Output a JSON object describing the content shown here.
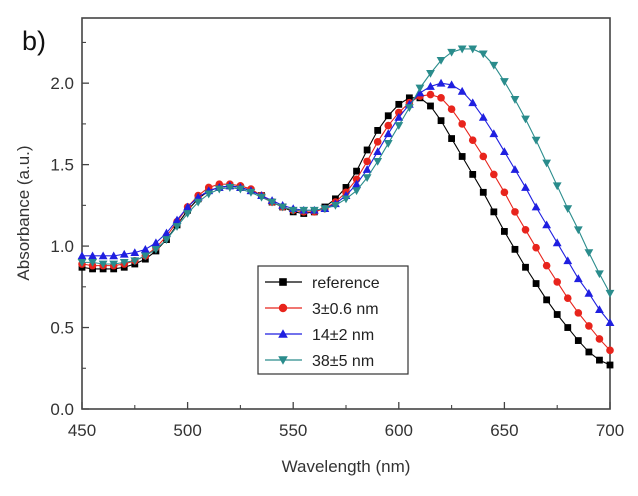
{
  "panel_label": "b)",
  "chart_data": {
    "type": "line",
    "title": "",
    "xlabel": "Wavelength (nm)",
    "ylabel": "Absorbance (a.u.)",
    "xlim": [
      450,
      700
    ],
    "ylim": [
      0.0,
      2.4
    ],
    "xticks": [
      450,
      500,
      550,
      600,
      650,
      700
    ],
    "yticks": [
      0.0,
      0.5,
      1.0,
      1.5,
      2.0
    ],
    "ytick_labels": [
      "0.0",
      "0.5",
      "1.0",
      "1.5",
      "2.0"
    ],
    "x_step": 5,
    "grid": false,
    "legend_position": "bottom-center",
    "series": [
      {
        "name": "reference",
        "marker": "square",
        "color": "#000000",
        "x": [
          450,
          455,
          460,
          465,
          470,
          475,
          480,
          485,
          490,
          495,
          500,
          505,
          510,
          515,
          520,
          525,
          530,
          535,
          540,
          545,
          550,
          555,
          560,
          565,
          570,
          575,
          580,
          585,
          590,
          595,
          600,
          605,
          610,
          615,
          620,
          625,
          630,
          635,
          640,
          645,
          650,
          655,
          660,
          665,
          670,
          675,
          680,
          685,
          690,
          695,
          700
        ],
        "values": [
          0.87,
          0.86,
          0.86,
          0.86,
          0.87,
          0.89,
          0.92,
          0.97,
          1.04,
          1.13,
          1.22,
          1.29,
          1.34,
          1.36,
          1.37,
          1.36,
          1.34,
          1.31,
          1.27,
          1.24,
          1.21,
          1.2,
          1.21,
          1.24,
          1.29,
          1.36,
          1.46,
          1.59,
          1.71,
          1.8,
          1.87,
          1.91,
          1.91,
          1.86,
          1.77,
          1.66,
          1.55,
          1.44,
          1.33,
          1.21,
          1.09,
          0.98,
          0.87,
          0.77,
          0.67,
          0.58,
          0.5,
          0.42,
          0.35,
          0.3,
          0.27
        ]
      },
      {
        "name": "3±0.6 nm",
        "marker": "circle",
        "color": "#e8241c",
        "x": [
          450,
          455,
          460,
          465,
          470,
          475,
          480,
          485,
          490,
          495,
          500,
          505,
          510,
          515,
          520,
          525,
          530,
          535,
          540,
          545,
          550,
          555,
          560,
          565,
          570,
          575,
          580,
          585,
          590,
          595,
          600,
          605,
          610,
          615,
          620,
          625,
          630,
          635,
          640,
          645,
          650,
          655,
          660,
          665,
          670,
          675,
          680,
          685,
          690,
          695,
          700
        ],
        "values": [
          0.89,
          0.88,
          0.88,
          0.88,
          0.89,
          0.91,
          0.94,
          0.99,
          1.06,
          1.15,
          1.24,
          1.31,
          1.36,
          1.38,
          1.38,
          1.37,
          1.35,
          1.31,
          1.27,
          1.24,
          1.22,
          1.21,
          1.21,
          1.23,
          1.27,
          1.33,
          1.41,
          1.52,
          1.64,
          1.74,
          1.82,
          1.88,
          1.92,
          1.93,
          1.91,
          1.84,
          1.75,
          1.65,
          1.55,
          1.44,
          1.33,
          1.21,
          1.1,
          0.99,
          0.88,
          0.78,
          0.68,
          0.59,
          0.51,
          0.43,
          0.36
        ]
      },
      {
        "name": "14±2 nm",
        "marker": "triangle-up",
        "color": "#1f1fe0",
        "x": [
          450,
          455,
          460,
          465,
          470,
          475,
          480,
          485,
          490,
          495,
          500,
          505,
          510,
          515,
          520,
          525,
          530,
          535,
          540,
          545,
          550,
          555,
          560,
          565,
          570,
          575,
          580,
          585,
          590,
          595,
          600,
          605,
          610,
          615,
          620,
          625,
          630,
          635,
          640,
          645,
          650,
          655,
          660,
          665,
          670,
          675,
          680,
          685,
          690,
          695,
          700
        ],
        "values": [
          0.94,
          0.94,
          0.94,
          0.94,
          0.95,
          0.96,
          0.98,
          1.02,
          1.08,
          1.16,
          1.24,
          1.3,
          1.34,
          1.36,
          1.37,
          1.36,
          1.34,
          1.31,
          1.28,
          1.25,
          1.23,
          1.22,
          1.22,
          1.23,
          1.26,
          1.31,
          1.38,
          1.47,
          1.58,
          1.69,
          1.79,
          1.87,
          1.94,
          1.98,
          2.0,
          1.99,
          1.95,
          1.88,
          1.79,
          1.69,
          1.58,
          1.47,
          1.36,
          1.24,
          1.13,
          1.02,
          0.91,
          0.8,
          0.71,
          0.61,
          0.53
        ]
      },
      {
        "name": "38±5 nm",
        "marker": "triangle-down",
        "color": "#2a8c8c",
        "x": [
          450,
          455,
          460,
          465,
          470,
          475,
          480,
          485,
          490,
          495,
          500,
          505,
          510,
          515,
          520,
          525,
          530,
          535,
          540,
          545,
          550,
          555,
          560,
          565,
          570,
          575,
          580,
          585,
          590,
          595,
          600,
          605,
          610,
          615,
          620,
          625,
          630,
          635,
          640,
          645,
          650,
          655,
          660,
          665,
          670,
          675,
          680,
          685,
          690,
          695,
          700
        ],
        "values": [
          0.9,
          0.9,
          0.89,
          0.89,
          0.9,
          0.91,
          0.94,
          0.98,
          1.04,
          1.12,
          1.2,
          1.27,
          1.32,
          1.35,
          1.36,
          1.35,
          1.33,
          1.3,
          1.27,
          1.24,
          1.22,
          1.22,
          1.22,
          1.23,
          1.25,
          1.29,
          1.34,
          1.42,
          1.52,
          1.63,
          1.74,
          1.85,
          1.97,
          2.06,
          2.14,
          2.19,
          2.21,
          2.21,
          2.18,
          2.11,
          2.01,
          1.9,
          1.78,
          1.65,
          1.51,
          1.37,
          1.23,
          1.1,
          0.96,
          0.83,
          0.71
        ]
      }
    ]
  }
}
